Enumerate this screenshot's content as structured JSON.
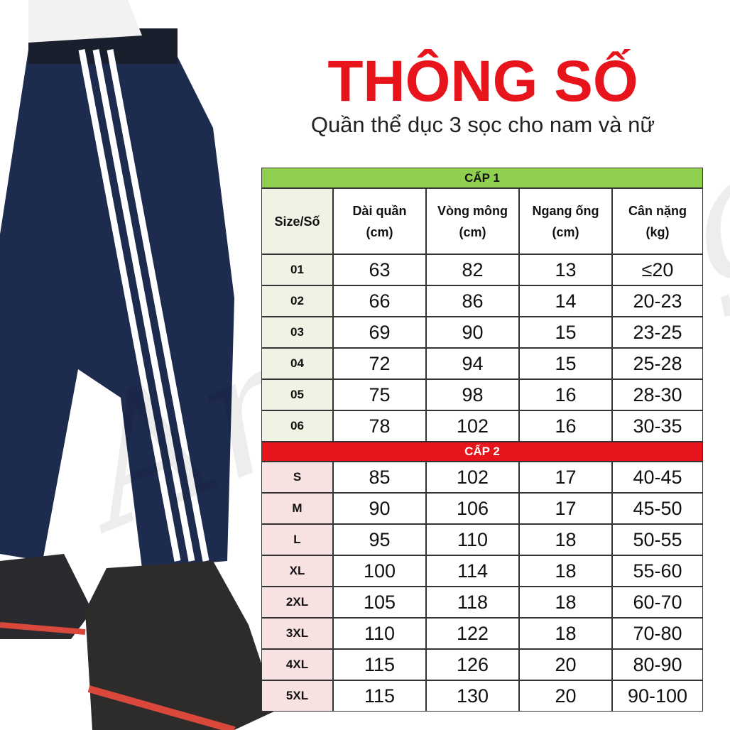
{
  "header": {
    "title": "THÔNG SỐ",
    "subtitle": "Quần thể dục 3 sọc cho nam và nữ"
  },
  "watermark": "Amazing",
  "table": {
    "columns": [
      [
        "Size/Số"
      ],
      [
        "Dài quần",
        "(cm)"
      ],
      [
        "Vòng mông",
        "(cm)"
      ],
      [
        "Ngang ống",
        "(cm)"
      ],
      [
        "Cân nặng",
        "(kg)"
      ]
    ],
    "sections": [
      {
        "title": "CẤP 1",
        "rows": [
          [
            "01",
            "63",
            "82",
            "13",
            "≤20"
          ],
          [
            "02",
            "66",
            "86",
            "14",
            "20-23"
          ],
          [
            "03",
            "69",
            "90",
            "15",
            "23-25"
          ],
          [
            "04",
            "72",
            "94",
            "15",
            "25-28"
          ],
          [
            "05",
            "75",
            "98",
            "16",
            "28-30"
          ],
          [
            "06",
            "78",
            "102",
            "16",
            "30-35"
          ]
        ]
      },
      {
        "title": "CẤP 2",
        "rows": [
          [
            "S",
            "85",
            "102",
            "17",
            "40-45"
          ],
          [
            "M",
            "90",
            "106",
            "17",
            "45-50"
          ],
          [
            "L",
            "95",
            "110",
            "18",
            "50-55"
          ],
          [
            "XL",
            "100",
            "114",
            "18",
            "55-60"
          ],
          [
            "2XL",
            "105",
            "118",
            "18",
            "60-70"
          ],
          [
            "3XL",
            "110",
            "122",
            "18",
            "70-80"
          ],
          [
            "4XL",
            "115",
            "126",
            "20",
            "80-90"
          ],
          [
            "5XL",
            "115",
            "130",
            "20",
            "90-100"
          ]
        ]
      }
    ]
  }
}
